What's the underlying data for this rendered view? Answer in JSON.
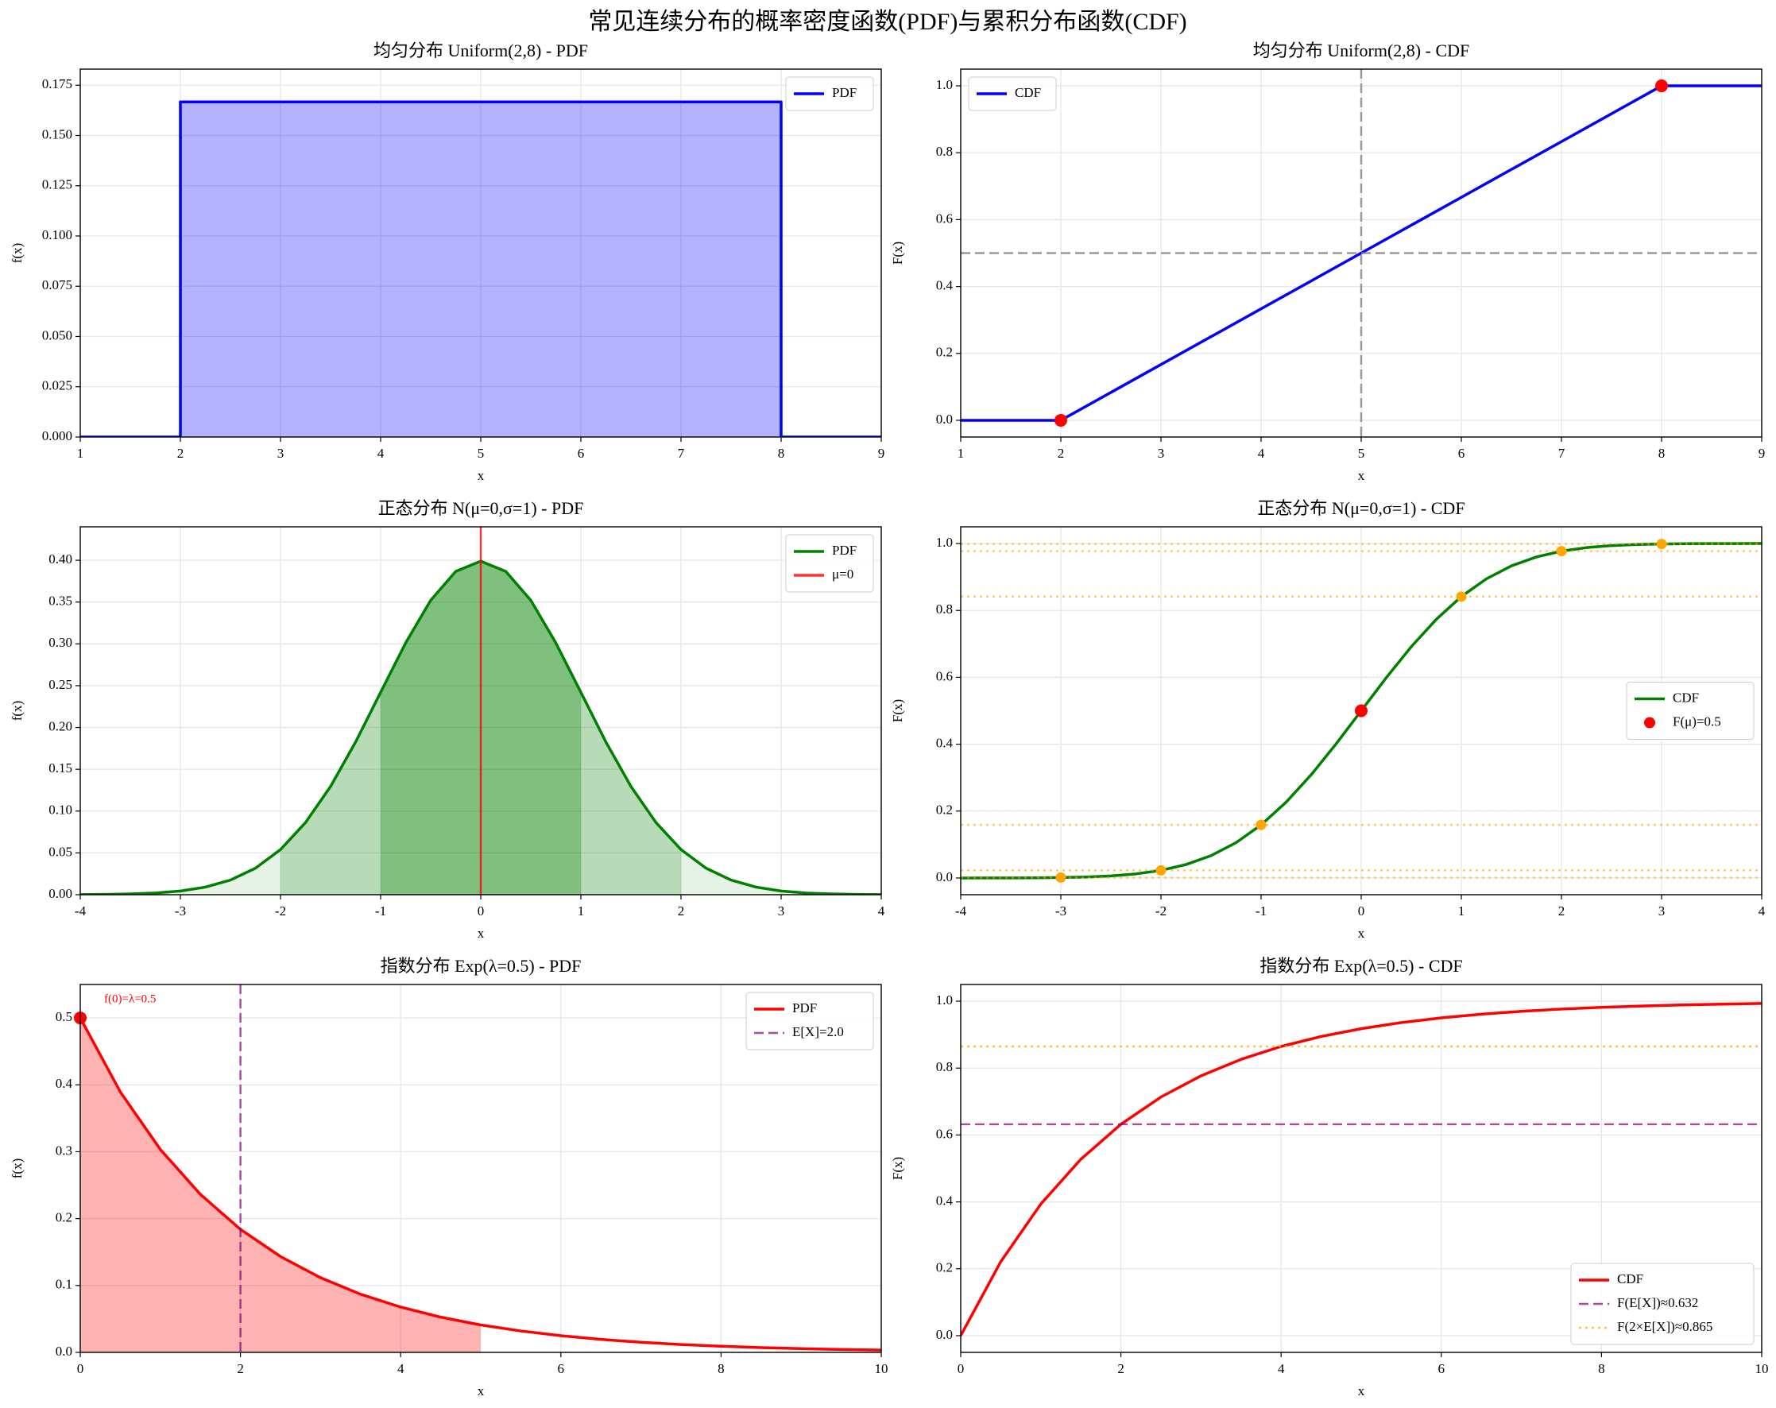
{
  "title": "常见连续分布的概率密度函数(PDF)与累积分布函数(CDF)",
  "chart_data": [
    {
      "type": "line",
      "title": "均匀分布 Uniform(2,8) - PDF",
      "xlabel": "x",
      "ylabel": "f(x)",
      "xlim": [
        1,
        9
      ],
      "ylim": [
        0,
        0.183
      ],
      "xticks": [
        1,
        2,
        3,
        4,
        5,
        6,
        7,
        8,
        9
      ],
      "yticks": [
        {
          "value": 0,
          "label": "0.000"
        },
        {
          "value": 0.025,
          "label": "0.025"
        },
        {
          "value": 0.05,
          "label": "0.050"
        },
        {
          "value": 0.075,
          "label": "0.075"
        },
        {
          "value": 0.1,
          "label": "0.100"
        },
        {
          "value": 0.125,
          "label": "0.125"
        },
        {
          "value": 0.15,
          "label": "0.150"
        },
        {
          "value": 0.175,
          "label": "0.175"
        }
      ],
      "grid": true,
      "legend": "upper right",
      "series": [
        {
          "name": "PDF",
          "color": "#0000ff",
          "x": [
            1,
            2,
            2,
            8,
            8,
            9
          ],
          "values": [
            0,
            0,
            0.1667,
            0.1667,
            0,
            0
          ],
          "shaded_ranges": [
            {
              "from": 2,
              "to": 8,
              "opacity": 0.3
            }
          ]
        }
      ]
    },
    {
      "type": "line",
      "title": "均匀分布 Uniform(2,8) - CDF",
      "xlabel": "x",
      "ylabel": "F(x)",
      "xlim": [
        1,
        9
      ],
      "ylim": [
        -0.05,
        1.05
      ],
      "xticks": [
        1,
        2,
        3,
        4,
        5,
        6,
        7,
        8,
        9
      ],
      "yticks": [
        {
          "value": 0,
          "label": "0.0"
        },
        {
          "value": 0.2,
          "label": "0.2"
        },
        {
          "value": 0.4,
          "label": "0.4"
        },
        {
          "value": 0.6,
          "label": "0.6"
        },
        {
          "value": 0.8,
          "label": "0.8"
        },
        {
          "value": 1,
          "label": "1.0"
        }
      ],
      "grid": true,
      "legend": "upper left",
      "series": [
        {
          "name": "CDF",
          "color": "#0000ff",
          "x": [
            1,
            2,
            8,
            9
          ],
          "values": [
            0,
            0,
            1,
            1
          ]
        }
      ],
      "ref_lines": [
        {
          "orientation": "vertical",
          "value": 5,
          "color": "#808080",
          "style": "dashed",
          "opacity": 0.8
        },
        {
          "orientation": "horizontal",
          "value": 0.5,
          "color": "#808080",
          "style": "dashed",
          "opacity": 0.8
        }
      ],
      "points": [
        {
          "color": "#ff0000",
          "x": [
            2,
            8
          ],
          "values": [
            0,
            1
          ]
        }
      ]
    },
    {
      "type": "line",
      "title": "正态分布 N(μ=0,σ=1) - PDF",
      "xlabel": "x",
      "ylabel": "f(x)",
      "xlim": [
        -4,
        4
      ],
      "ylim": [
        0,
        0.44
      ],
      "xticks": [
        -4,
        -3,
        -2,
        -1,
        0,
        1,
        2,
        3,
        4
      ],
      "yticks": [
        {
          "value": 0,
          "label": "0.00"
        },
        {
          "value": 0.05,
          "label": "0.05"
        },
        {
          "value": 0.1,
          "label": "0.10"
        },
        {
          "value": 0.15,
          "label": "0.15"
        },
        {
          "value": 0.2,
          "label": "0.20"
        },
        {
          "value": 0.25,
          "label": "0.25"
        },
        {
          "value": 0.3,
          "label": "0.30"
        },
        {
          "value": 0.35,
          "label": "0.35"
        },
        {
          "value": 0.4,
          "label": "0.40"
        }
      ],
      "grid": true,
      "legend": "upper right",
      "series": [
        {
          "name": "PDF",
          "color": "#008000",
          "x": [
            -4,
            -3.75,
            -3.5,
            -3.25,
            -3,
            -2.75,
            -2.5,
            -2.25,
            -2,
            -1.75,
            -1.5,
            -1.25,
            -1,
            -0.75,
            -0.5,
            -0.25,
            0,
            0.25,
            0.5,
            0.75,
            1,
            1.25,
            1.5,
            1.75,
            2,
            2.25,
            2.5,
            2.75,
            3,
            3.25,
            3.5,
            3.75,
            4
          ],
          "values": [
            0.0001,
            0.0004,
            0.0009,
            0.002,
            0.0044,
            0.0091,
            0.0175,
            0.0317,
            0.054,
            0.0863,
            0.1295,
            0.1826,
            0.242,
            0.3011,
            0.3521,
            0.3867,
            0.3989,
            0.3867,
            0.3521,
            0.3011,
            0.242,
            0.1826,
            0.1295,
            0.0863,
            0.054,
            0.0317,
            0.0175,
            0.0091,
            0.0044,
            0.002,
            0.0009,
            0.0004,
            0.0001
          ],
          "shaded_ranges": [
            {
              "from": -4,
              "to": 4,
              "opacity": 0.1
            },
            {
              "from": -2,
              "to": 2,
              "opacity": 0.2
            },
            {
              "from": -1,
              "to": 1,
              "opacity": 0.3
            }
          ]
        }
      ],
      "ref_lines": [
        {
          "name": "μ=0",
          "orientation": "vertical",
          "value": 0,
          "color": "#ff0000",
          "style": "solid",
          "opacity": 0.8
        }
      ]
    },
    {
      "type": "line",
      "title": "正态分布 N(μ=0,σ=1) - CDF",
      "xlabel": "x",
      "ylabel": "F(x)",
      "xlim": [
        -4,
        4
      ],
      "ylim": [
        -0.05,
        1.05
      ],
      "xticks": [
        -4,
        -3,
        -2,
        -1,
        0,
        1,
        2,
        3,
        4
      ],
      "yticks": [
        {
          "value": 0,
          "label": "0.0"
        },
        {
          "value": 0.2,
          "label": "0.2"
        },
        {
          "value": 0.4,
          "label": "0.4"
        },
        {
          "value": 0.6,
          "label": "0.6"
        },
        {
          "value": 0.8,
          "label": "0.8"
        },
        {
          "value": 1,
          "label": "1.0"
        }
      ],
      "grid": true,
      "legend": "center right",
      "series": [
        {
          "name": "CDF",
          "color": "#008000",
          "x": [
            -4,
            -3.75,
            -3.5,
            -3.25,
            -3,
            -2.75,
            -2.5,
            -2.25,
            -2,
            -1.75,
            -1.5,
            -1.25,
            -1,
            -0.75,
            -0.5,
            -0.25,
            0,
            0.25,
            0.5,
            0.75,
            1,
            1.25,
            1.5,
            1.75,
            2,
            2.25,
            2.5,
            2.75,
            3,
            3.25,
            3.5,
            3.75,
            4
          ],
          "values": [
            0.0,
            0.0001,
            0.0002,
            0.0006,
            0.0013,
            0.003,
            0.0062,
            0.0122,
            0.0228,
            0.0401,
            0.0668,
            0.1056,
            0.1587,
            0.2266,
            0.3085,
            0.4013,
            0.5,
            0.5987,
            0.6915,
            0.7734,
            0.8413,
            0.8944,
            0.9332,
            0.9599,
            0.9772,
            0.9878,
            0.9938,
            0.997,
            0.9987,
            0.9994,
            0.9998,
            0.9999,
            1.0
          ]
        }
      ],
      "ref_lines": [
        {
          "orientation": "horizontal",
          "value": 0.0013,
          "color": "#ffa500",
          "style": "dotted",
          "opacity": 0.6
        },
        {
          "orientation": "horizontal",
          "value": 0.0228,
          "color": "#ffa500",
          "style": "dotted",
          "opacity": 0.6
        },
        {
          "orientation": "horizontal",
          "value": 0.1587,
          "color": "#ffa500",
          "style": "dotted",
          "opacity": 0.6
        },
        {
          "orientation": "horizontal",
          "value": 0.8413,
          "color": "#ffa500",
          "style": "dotted",
          "opacity": 0.6
        },
        {
          "orientation": "horizontal",
          "value": 0.9772,
          "color": "#ffa500",
          "style": "dotted",
          "opacity": 0.6
        },
        {
          "orientation": "horizontal",
          "value": 0.9987,
          "color": "#ffa500",
          "style": "dotted",
          "opacity": 0.6
        }
      ],
      "points": [
        {
          "color": "#ffa500",
          "x": [
            -3,
            -2,
            -1,
            1,
            2,
            3
          ],
          "values": [
            0.0013,
            0.0228,
            0.1587,
            0.8413,
            0.9772,
            0.9987
          ]
        },
        {
          "name": "F(μ)=0.5",
          "color": "#ff0000",
          "x": [
            0
          ],
          "values": [
            0.5
          ]
        }
      ]
    },
    {
      "type": "line",
      "title": "指数分布 Exp(λ=0.5) - PDF",
      "xlabel": "x",
      "ylabel": "f(x)",
      "xlim": [
        0,
        10
      ],
      "ylim": [
        0,
        0.55
      ],
      "xticks": [
        0,
        2,
        4,
        6,
        8,
        10
      ],
      "yticks": [
        {
          "value": 0,
          "label": "0.0"
        },
        {
          "value": 0.1,
          "label": "0.1"
        },
        {
          "value": 0.2,
          "label": "0.2"
        },
        {
          "value": 0.3,
          "label": "0.3"
        },
        {
          "value": 0.4,
          "label": "0.4"
        },
        {
          "value": 0.5,
          "label": "0.5"
        }
      ],
      "grid": true,
      "legend": "upper right",
      "series": [
        {
          "name": "PDF",
          "color": "#ff0000",
          "x": [
            0,
            0.5,
            1,
            1.5,
            2,
            2.5,
            3,
            3.5,
            4,
            4.5,
            5,
            5.5,
            6,
            6.5,
            7,
            7.5,
            8,
            8.5,
            9,
            9.5,
            10
          ],
          "values": [
            0.5,
            0.3894,
            0.3033,
            0.2362,
            0.1839,
            0.1433,
            0.1116,
            0.0869,
            0.0677,
            0.0527,
            0.041,
            0.032,
            0.0249,
            0.0194,
            0.0151,
            0.0118,
            0.0092,
            0.0071,
            0.0056,
            0.0043,
            0.0034
          ],
          "shaded_ranges": [
            {
              "from": 0,
              "to": 5,
              "opacity": 0.3
            }
          ]
        }
      ],
      "ref_lines": [
        {
          "name": "E[X]=2.0",
          "orientation": "vertical",
          "value": 2,
          "color": "#800080",
          "style": "dashed",
          "opacity": 0.7
        }
      ],
      "points": [
        {
          "color": "#ff0000",
          "x": [
            0
          ],
          "values": [
            0.5
          ],
          "label": "f(0)=λ=0.5"
        }
      ]
    },
    {
      "type": "line",
      "title": "指数分布 Exp(λ=0.5) - CDF",
      "xlabel": "x",
      "ylabel": "F(x)",
      "xlim": [
        0,
        10
      ],
      "ylim": [
        -0.05,
        1.05
      ],
      "xticks": [
        0,
        2,
        4,
        6,
        8,
        10
      ],
      "yticks": [
        {
          "value": 0,
          "label": "0.0"
        },
        {
          "value": 0.2,
          "label": "0.2"
        },
        {
          "value": 0.4,
          "label": "0.4"
        },
        {
          "value": 0.6,
          "label": "0.6"
        },
        {
          "value": 0.8,
          "label": "0.8"
        },
        {
          "value": 1,
          "label": "1.0"
        }
      ],
      "grid": true,
      "legend": "lower right",
      "series": [
        {
          "name": "CDF",
          "color": "#ff0000",
          "x": [
            0,
            0.5,
            1,
            1.5,
            2,
            2.5,
            3,
            3.5,
            4,
            4.5,
            5,
            5.5,
            6,
            6.5,
            7,
            7.5,
            8,
            8.5,
            9,
            9.5,
            10
          ],
          "values": [
            0,
            0.2212,
            0.3935,
            0.5276,
            0.6321,
            0.7135,
            0.7769,
            0.8262,
            0.8647,
            0.8946,
            0.9179,
            0.9361,
            0.9502,
            0.9612,
            0.9698,
            0.9765,
            0.9817,
            0.9857,
            0.9889,
            0.9913,
            0.9933
          ]
        }
      ],
      "ref_lines": [
        {
          "name": "F(E[X])≈0.632",
          "orientation": "horizontal",
          "value": 0.632,
          "color": "#800080",
          "style": "dashed",
          "opacity": 0.7
        },
        {
          "name": "F(2×E[X])≈0.865",
          "orientation": "horizontal",
          "value": 0.865,
          "color": "#ffa500",
          "style": "dotted",
          "opacity": 0.7
        }
      ]
    }
  ]
}
